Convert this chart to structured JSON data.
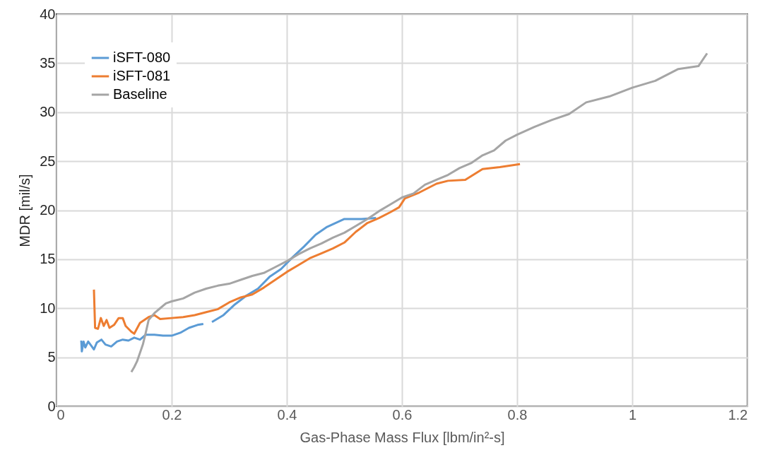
{
  "chart_data": {
    "type": "line",
    "xlabel": "Gas-Phase Mass Flux [lbm/in²-s]",
    "ylabel": "MDR [mil/s]",
    "xlim": [
      0,
      1.2
    ],
    "xticks": [
      0,
      0.2,
      0.4,
      0.6,
      0.8,
      1,
      1.2
    ],
    "ylim": [
      0,
      40
    ],
    "yticks": [
      0,
      5,
      10,
      15,
      20,
      25,
      30,
      35,
      40
    ],
    "grid": true,
    "legend": "top left",
    "marker": "none",
    "line_style": "solid",
    "series": [
      {
        "name": "iSFT-080",
        "color": "#5b9bd5",
        "x": [
          0.043,
          0.044,
          0.047,
          0.05,
          0.055,
          0.06,
          0.065,
          0.07,
          0.078,
          0.085,
          0.095,
          0.105,
          0.115,
          0.125,
          0.135,
          0.145,
          0.155,
          0.17,
          0.185,
          0.2,
          0.215,
          0.23,
          0.245,
          0.255,
          0.262,
          0.27,
          0.29,
          0.31,
          0.33,
          0.35,
          0.37,
          0.39,
          0.41,
          0.43,
          0.45,
          0.47,
          0.5,
          0.53,
          0.555
        ],
        "values": [
          6.7,
          5.6,
          6.6,
          6.0,
          6.6,
          6.2,
          5.8,
          6.5,
          6.8,
          6.3,
          6.1,
          6.6,
          6.8,
          6.7,
          7.0,
          6.8,
          7.3,
          7.3,
          7.2,
          7.2,
          7.5,
          8.0,
          8.3,
          8.4,
          null,
          8.6,
          9.3,
          10.4,
          11.3,
          12.0,
          13.2,
          14.0,
          15.2,
          16.3,
          17.5,
          18.3,
          19.1,
          19.1,
          19.2
        ]
      },
      {
        "name": "iSFT-081",
        "color": "#ed7d31",
        "x": [
          0.065,
          0.067,
          0.072,
          0.077,
          0.082,
          0.087,
          0.092,
          0.1,
          0.108,
          0.115,
          0.12,
          0.13,
          0.135,
          0.145,
          0.16,
          0.17,
          0.18,
          0.2,
          0.22,
          0.24,
          0.26,
          0.28,
          0.3,
          0.32,
          0.34,
          0.36,
          0.38,
          0.4,
          0.42,
          0.44,
          0.46,
          0.48,
          0.5,
          0.52,
          0.54,
          0.56,
          0.58,
          0.595,
          0.605,
          0.63,
          0.66,
          0.68,
          0.71,
          0.74,
          0.77,
          0.805
        ],
        "values": [
          11.9,
          8.0,
          7.9,
          9.0,
          8.2,
          8.8,
          8.0,
          8.3,
          9.0,
          9.0,
          8.2,
          7.6,
          7.4,
          8.5,
          9.1,
          9.3,
          8.9,
          9.0,
          9.1,
          9.3,
          9.6,
          9.9,
          10.6,
          11.1,
          11.4,
          12.1,
          12.9,
          13.7,
          14.4,
          15.1,
          15.6,
          16.1,
          16.7,
          17.8,
          18.7,
          19.2,
          19.8,
          20.3,
          21.2,
          21.8,
          22.7,
          23.0,
          23.1,
          24.2,
          24.4,
          24.7
        ]
      },
      {
        "name": "Baseline",
        "color": "#a5a5a5",
        "x": [
          0.13,
          0.135,
          0.14,
          0.15,
          0.155,
          0.16,
          0.17,
          0.18,
          0.19,
          0.2,
          0.22,
          0.24,
          0.26,
          0.28,
          0.3,
          0.32,
          0.34,
          0.36,
          0.38,
          0.4,
          0.42,
          0.44,
          0.46,
          0.48,
          0.5,
          0.52,
          0.54,
          0.56,
          0.58,
          0.6,
          0.62,
          0.64,
          0.66,
          0.68,
          0.7,
          0.72,
          0.74,
          0.76,
          0.78,
          0.8,
          0.83,
          0.86,
          0.89,
          0.92,
          0.96,
          1.0,
          1.04,
          1.08,
          1.115,
          1.13
        ],
        "values": [
          3.5,
          4.0,
          4.6,
          6.3,
          7.5,
          8.8,
          9.5,
          10.0,
          10.5,
          10.7,
          11.0,
          11.6,
          12.0,
          12.3,
          12.5,
          12.9,
          13.3,
          13.6,
          14.2,
          14.8,
          15.5,
          16.1,
          16.6,
          17.2,
          17.7,
          18.4,
          19.1,
          19.9,
          20.6,
          21.3,
          21.7,
          22.6,
          23.1,
          23.6,
          24.3,
          24.8,
          25.6,
          26.1,
          27.1,
          27.7,
          28.5,
          29.2,
          29.8,
          31.0,
          31.6,
          32.5,
          33.2,
          34.4,
          34.7,
          36.0
        ]
      }
    ]
  }
}
